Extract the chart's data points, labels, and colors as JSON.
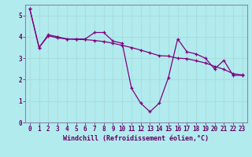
{
  "xlabel": "Windchill (Refroidissement éolien,°C)",
  "background_color": "#b2ebee",
  "line_color": "#800080",
  "grid_color": "#aadddd",
  "spine_color": "#8888aa",
  "xlim": [
    -0.5,
    23.5
  ],
  "ylim": [
    0,
    5.5
  ],
  "yticks": [
    0,
    1,
    2,
    3,
    4,
    5
  ],
  "xticks": [
    0,
    1,
    2,
    3,
    4,
    5,
    6,
    7,
    8,
    9,
    10,
    11,
    12,
    13,
    14,
    15,
    16,
    17,
    18,
    19,
    20,
    21,
    22,
    23
  ],
  "line1_x": [
    0,
    1,
    2,
    3,
    4,
    5,
    6,
    7,
    8,
    9,
    10,
    11,
    12,
    13,
    14,
    15,
    16,
    17,
    18,
    19,
    20,
    21,
    22,
    23
  ],
  "line1_y": [
    5.3,
    3.5,
    4.1,
    4.0,
    3.9,
    3.9,
    3.9,
    4.2,
    4.2,
    3.8,
    3.7,
    1.6,
    0.9,
    0.5,
    0.9,
    2.1,
    3.9,
    3.3,
    3.2,
    3.0,
    2.5,
    2.9,
    2.2,
    2.2
  ],
  "line2_x": [
    0,
    1,
    2,
    3,
    4,
    5,
    6,
    7,
    8,
    9,
    10,
    11,
    12,
    13,
    14,
    15,
    16,
    17,
    18,
    19,
    20,
    21,
    22,
    23
  ],
  "line2_y": [
    5.3,
    3.5,
    4.05,
    3.95,
    3.9,
    3.88,
    3.87,
    3.83,
    3.78,
    3.7,
    3.6,
    3.5,
    3.38,
    3.25,
    3.12,
    3.1,
    3.0,
    2.98,
    2.88,
    2.78,
    2.62,
    2.48,
    2.28,
    2.22
  ],
  "tick_color": "#660066",
  "tick_fontsize": 5.5,
  "xlabel_fontsize": 6.0
}
